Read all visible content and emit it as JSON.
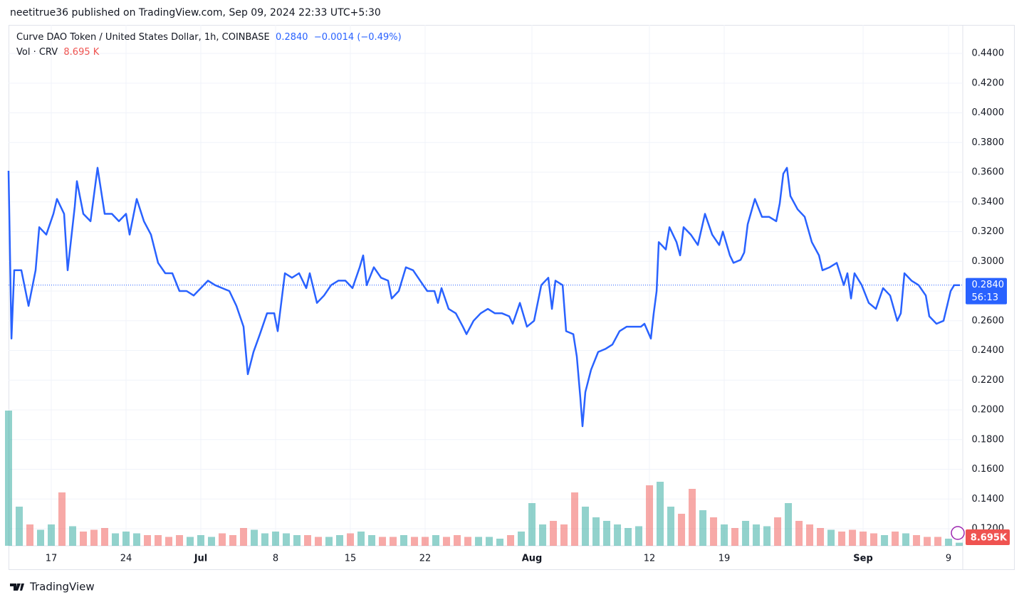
{
  "header": {
    "published": "neetitrue36 published on TradingView.com, Sep 09, 2024 22:33 UTC+5:30"
  },
  "footer": {
    "brand": "TradingView"
  },
  "chart_data": {
    "type": "line",
    "title": "Curve DAO Token / United States Dollar, 1h, COINBASE",
    "last_price_label": "0.2840",
    "change_label": "−0.0014 (−0.49%)",
    "countdown": "56:13",
    "x": [
      13,
      13.27,
      13.53,
      14.2,
      14.87,
      15.53,
      15.87,
      16.53,
      17.2,
      17.53,
      18.2,
      18.53,
      19.2,
      19.4,
      20,
      20.67,
      21.33,
      22,
      22.67,
      23.33,
      24,
      24.33,
      25,
      25.67,
      26.33,
      27,
      27.67,
      28.33,
      29,
      29.67,
      30.33,
      31,
      31.67,
      32.33,
      33,
      33.67,
      34.33,
      35,
      35.4,
      35.93,
      36.53,
      37.2,
      37.87,
      38.2,
      38.87,
      39.53,
      40.2,
      40.87,
      41.2,
      41.87,
      42.53,
      43.2,
      43.87,
      44.53,
      45.2,
      45.87,
      46.2,
      46.53,
      47.2,
      47.87,
      48.53,
      48.87,
      49.53,
      50.2,
      50.87,
      51.53,
      52.2,
      52.87,
      53.2,
      53.53,
      54.2,
      54.87,
      55.53,
      55.87,
      56.53,
      57.2,
      57.87,
      58.53,
      59.2,
      59.87,
      60.2,
      60.87,
      61.53,
      62.2,
      62.87,
      63.53,
      63.87,
      64.2,
      64.87,
      65.2,
      65.87,
      66.2,
      66.53,
      66.73,
      67,
      67.53,
      68.2,
      68.87,
      69.53,
      70.2,
      70.87,
      71.53,
      72.2,
      72.53,
      73.13,
      73.4,
      73.67,
      73.87,
      74.53,
      74.87,
      75.53,
      75.87,
      76.2,
      76.87,
      77.53,
      78.2,
      78.87,
      79.53,
      79.87,
      80.53,
      80.87,
      81.53,
      81.87,
      82.2,
      82.87,
      83.53,
      84.2,
      84.87,
      85.2,
      85.53,
      85.87,
      86.2,
      86.87,
      87.53,
      88.2,
      88.87,
      89.2,
      89.87,
      90.53,
      91.2,
      91.53,
      91.87,
      92.2,
      92.87,
      93.53,
      94.2,
      94.87,
      95.53,
      96.2,
      96.53,
      96.87,
      97.53,
      98.2,
      98.87,
      99.2,
      99.87,
      100.53,
      101.2,
      101.53,
      102.07
    ],
    "series": [
      {
        "color": "#2962ff",
        "values": [
          0.361,
          0.248,
          0.294,
          0.294,
          0.27,
          0.294,
          0.323,
          0.318,
          0.332,
          0.342,
          0.332,
          0.294,
          0.337,
          0.354,
          0.332,
          0.327,
          0.363,
          0.332,
          0.332,
          0.327,
          0.332,
          0.318,
          0.342,
          0.327,
          0.318,
          0.299,
          0.292,
          0.292,
          0.28,
          0.28,
          0.277,
          0.282,
          0.287,
          0.284,
          0.282,
          0.28,
          0.27,
          0.256,
          0.224,
          0.239,
          0.251,
          0.265,
          0.265,
          0.253,
          0.292,
          0.289,
          0.292,
          0.282,
          0.292,
          0.272,
          0.277,
          0.284,
          0.287,
          0.287,
          0.282,
          0.296,
          0.304,
          0.284,
          0.296,
          0.289,
          0.287,
          0.275,
          0.28,
          0.296,
          0.294,
          0.287,
          0.28,
          0.28,
          0.272,
          0.282,
          0.268,
          0.265,
          0.256,
          0.251,
          0.26,
          0.265,
          0.268,
          0.265,
          0.265,
          0.263,
          0.258,
          0.272,
          0.256,
          0.26,
          0.284,
          0.289,
          0.268,
          0.287,
          0.284,
          0.253,
          0.251,
          0.236,
          0.208,
          0.189,
          0.212,
          0.227,
          0.239,
          0.241,
          0.244,
          0.253,
          0.256,
          0.256,
          0.256,
          0.258,
          0.248,
          0.265,
          0.28,
          0.313,
          0.308,
          0.323,
          0.313,
          0.304,
          0.323,
          0.318,
          0.311,
          0.332,
          0.318,
          0.311,
          0.32,
          0.304,
          0.299,
          0.301,
          0.306,
          0.325,
          0.342,
          0.33,
          0.33,
          0.327,
          0.339,
          0.359,
          0.363,
          0.344,
          0.335,
          0.33,
          0.313,
          0.304,
          0.294,
          0.296,
          0.299,
          0.284,
          0.292,
          0.275,
          0.292,
          0.284,
          0.272,
          0.268,
          0.282,
          0.277,
          0.26,
          0.265,
          0.292,
          0.287,
          0.284,
          0.277,
          0.263,
          0.258,
          0.26,
          0.28,
          0.284,
          0.284
        ]
      }
    ],
    "xlim": [
      13,
      102.33
    ],
    "xticks": [
      17,
      24,
      {
        "value": 31,
        "label": "Jul"
      },
      {
        "value": 38,
        "label": "8"
      },
      {
        "value": 45,
        "label": "15"
      },
      {
        "value": 52,
        "label": "22"
      },
      {
        "value": 62,
        "label": "Aug"
      },
      {
        "value": 73,
        "label": "12"
      },
      {
        "value": 80,
        "label": "19"
      },
      {
        "value": 93,
        "label": "Sep"
      },
      {
        "value": 101,
        "label": "9"
      }
    ],
    "ylim": [
      0.1085,
      0.4592
    ],
    "yticks": [
      {
        "value": 0.44,
        "label": "0.4400"
      },
      {
        "value": 0.42,
        "label": "0.4200"
      },
      {
        "value": 0.4,
        "label": "0.4000"
      },
      {
        "value": 0.38,
        "label": "0.3800"
      },
      {
        "value": 0.36,
        "label": "0.3600"
      },
      {
        "value": 0.34,
        "label": "0.3400"
      },
      {
        "value": 0.32,
        "label": "0.3200"
      },
      {
        "value": 0.3,
        "label": "0.3000"
      },
      {
        "value": 0.28,
        "label": "0.2800"
      },
      {
        "value": 0.26,
        "label": "0.2600"
      },
      {
        "value": 0.24,
        "label": "0.2400"
      },
      {
        "value": 0.22,
        "label": "0.2200"
      },
      {
        "value": 0.2,
        "label": "0.2000"
      },
      {
        "value": 0.18,
        "label": "0.1800"
      },
      {
        "value": 0.16,
        "label": "0.1600"
      },
      {
        "value": 0.14,
        "label": "0.1400"
      },
      {
        "value": 0.12,
        "label": "0.1200"
      }
    ],
    "grid": true,
    "volume": {
      "name": "Vol · CRV",
      "last_label": "8.695 K",
      "axis_label": "8.695K",
      "up_color": "#26a69a",
      "down_color": "#ef5350",
      "x": [
        13,
        14,
        15,
        16,
        17,
        18,
        19,
        20,
        21,
        22,
        23,
        24,
        25,
        26,
        27,
        28,
        29,
        30,
        31,
        32,
        33,
        34,
        35,
        36,
        37,
        38,
        39,
        40,
        41,
        42,
        43,
        44,
        45,
        46,
        47,
        48,
        49,
        50,
        51,
        52,
        53,
        54,
        55,
        56,
        57,
        58,
        59,
        60,
        61,
        62,
        63,
        64,
        65,
        66,
        67,
        68,
        69,
        70,
        71,
        72,
        73,
        74,
        75,
        76,
        77,
        78,
        79,
        80,
        81,
        82,
        83,
        84,
        85,
        86,
        87,
        88,
        89,
        90,
        91,
        92,
        93,
        94,
        95,
        96,
        97,
        98,
        99,
        100,
        101,
        102
      ],
      "values": [
        380,
        110,
        60,
        45,
        60,
        150,
        55,
        40,
        45,
        50,
        35,
        40,
        35,
        30,
        30,
        25,
        30,
        25,
        30,
        25,
        35,
        30,
        50,
        45,
        35,
        40,
        35,
        30,
        30,
        25,
        25,
        30,
        35,
        40,
        30,
        25,
        25,
        30,
        25,
        25,
        30,
        25,
        30,
        25,
        25,
        25,
        20,
        30,
        40,
        120,
        60,
        70,
        60,
        150,
        110,
        80,
        70,
        60,
        50,
        55,
        170,
        180,
        110,
        90,
        160,
        100,
        80,
        60,
        50,
        70,
        60,
        55,
        80,
        120,
        70,
        60,
        50,
        45,
        40,
        45,
        40,
        35,
        30,
        40,
        35,
        30,
        25,
        25,
        20,
        8.695
      ]
    }
  }
}
